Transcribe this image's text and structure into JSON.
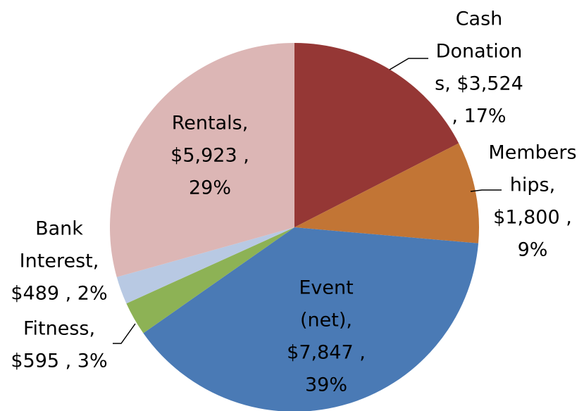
{
  "chart_data": {
    "type": "pie",
    "labels": [
      "Cash Donations, $3,524 , 17%",
      "Memberships, $1,800 , 9%",
      "Event (net), $7,847 , 39%",
      "Fitness, $595 , 3%",
      "Bank Interest, $489 , 2%",
      "Rentals, $5,923 , 29%"
    ],
    "values": [
      3524,
      1800,
      7847,
      595,
      489,
      5923
    ],
    "percents": [
      17,
      9,
      39,
      3,
      2,
      29
    ],
    "colors": [
      "#953735",
      "#c27535",
      "#4a7ab5",
      "#8db255",
      "#b8c9e3",
      "#dcb6b5"
    ]
  }
}
